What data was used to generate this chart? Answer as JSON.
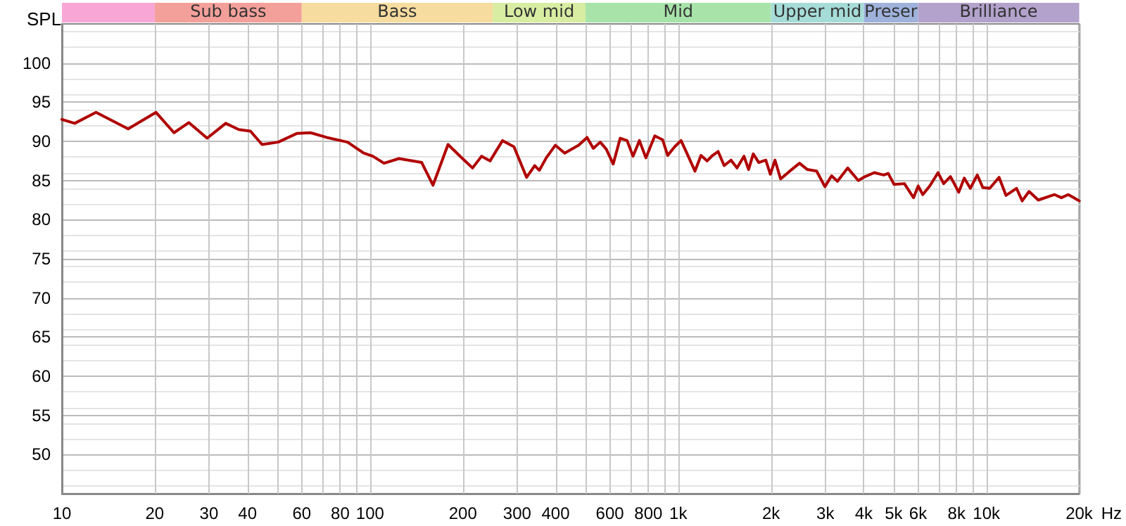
{
  "chart_data": {
    "type": "line",
    "ylabel": "SPL",
    "log": "x",
    "grid": true,
    "marker": "none",
    "line_style": "solid",
    "xlim": [
      10,
      20000
    ],
    "ylim": [
      45,
      105
    ],
    "xticks": [
      10,
      20,
      30,
      40,
      {
        "value": 50,
        "label": null
      },
      60,
      {
        "value": 70,
        "label": null
      },
      80,
      {
        "value": 90,
        "label": null
      },
      100,
      200,
      300,
      400,
      {
        "value": 500,
        "label": null
      },
      600,
      {
        "value": 700,
        "label": null
      },
      800,
      {
        "value": 900,
        "label": null
      },
      {
        "value": 1000,
        "label": "1k"
      },
      {
        "value": 2000,
        "label": "2k"
      },
      {
        "value": 3000,
        "label": "3k"
      },
      {
        "value": 4000,
        "label": "4k"
      },
      {
        "value": 5000,
        "label": "5k"
      },
      {
        "value": 6000,
        "label": "6k"
      },
      {
        "value": 7000,
        "label": null
      },
      {
        "value": 8000,
        "label": "8k"
      },
      {
        "value": 9000,
        "label": null
      },
      {
        "value": 10000,
        "label": "10k"
      },
      {
        "value": 20000,
        "label": "20k"
      }
    ],
    "xlabel": "Hz",
    "yticks": [
      50,
      55,
      60,
      65,
      70,
      75,
      80,
      85,
      90,
      95,
      100
    ],
    "bands": [
      {
        "axis": "x",
        "from": 10,
        "to": 20,
        "color": "#f7a6d6"
      },
      {
        "axis": "x",
        "from": 20,
        "to": 60,
        "label": "Sub bass",
        "color": "#f4a09a"
      },
      {
        "axis": "x",
        "from": 60,
        "to": 250,
        "label": "Bass",
        "color": "#f6dc9e"
      },
      {
        "axis": "x",
        "from": 250,
        "to": 500,
        "label": "Low mid",
        "color": "#d8eda2"
      },
      {
        "axis": "x",
        "from": 500,
        "to": 2000,
        "label": "Mid",
        "color": "#a8e4aa"
      },
      {
        "axis": "x",
        "from": 2000,
        "to": 4000,
        "label": "Upper mid",
        "color": "#a6dcd8"
      },
      {
        "axis": "x",
        "from": 4000,
        "to": 6000,
        "label": "Preser",
        "color": "#9fb2dc"
      },
      {
        "axis": "x",
        "from": 6000,
        "to": 20000,
        "label": "Brilliance",
        "color": "#b2a2cc"
      }
    ],
    "series": [
      {
        "color": "#b00000",
        "x": [
          10,
          11,
          12.9,
          16.4,
          20.2,
          23.1,
          25.8,
          29.6,
          34,
          37.5,
          40.9,
          44.6,
          50.3,
          57.8,
          64.1,
          72.3,
          84.5,
          95.3,
          102,
          111,
          124,
          147,
          160,
          179,
          197,
          215,
          230,
          245,
          269,
          293,
          322,
          342,
          354,
          373,
          399,
          428,
          475,
          506,
          530,
          558,
          584,
          615,
          648,
          682,
          713,
          748,
          785,
          839,
          890,
          924,
          973,
          1021,
          1069,
          1133,
          1185,
          1240,
          1292,
          1347,
          1409,
          1483,
          1551,
          1634,
          1691,
          1751,
          1825,
          1923,
          1990,
          2060,
          2148,
          2285,
          2474,
          2624,
          2811,
          2992,
          3143,
          3285,
          3546,
          3838,
          4040,
          4328,
          4639,
          4800,
          5016,
          5416,
          5800,
          6005,
          6214,
          6546,
          6966,
          7262,
          7644,
          8130,
          8472,
          8865,
          9337,
          9733,
          10250,
          10990,
          11570,
          12520,
          13060,
          13750,
          14730,
          16630,
          17510,
          18430,
          20000
        ],
        "values": [
          92.8,
          92.3,
          93.7,
          91.6,
          93.7,
          91.1,
          92.4,
          90.4,
          92.3,
          91.5,
          91.3,
          89.6,
          89.9,
          91.0,
          91.1,
          90.5,
          89.9,
          88.5,
          88.1,
          87.2,
          87.8,
          87.3,
          84.4,
          89.6,
          88.0,
          86.6,
          88.1,
          87.5,
          90.1,
          89.3,
          85.4,
          86.9,
          86.3,
          87.9,
          89.5,
          88.5,
          89.5,
          90.5,
          89.1,
          89.9,
          89.0,
          87.1,
          90.4,
          90.1,
          88.1,
          90.1,
          87.9,
          90.7,
          90.2,
          88.2,
          89.3,
          90.1,
          88.4,
          86.2,
          88.2,
          87.5,
          88.2,
          88.7,
          86.9,
          87.6,
          86.6,
          88.1,
          86.4,
          88.4,
          87.3,
          87.6,
          85.8,
          87.6,
          85.2,
          86.1,
          87.2,
          86.4,
          86.2,
          84.2,
          85.6,
          84.9,
          86.6,
          85.0,
          85.5,
          86.0,
          85.7,
          85.9,
          84.5,
          84.6,
          82.8,
          84.3,
          83.2,
          84.3,
          86.0,
          84.6,
          85.5,
          83.5,
          85.3,
          84.0,
          85.7,
          84.1,
          84.0,
          85.4,
          83.1,
          84.0,
          82.4,
          83.6,
          82.5,
          83.2,
          82.8,
          83.2,
          82.4
        ]
      }
    ]
  }
}
